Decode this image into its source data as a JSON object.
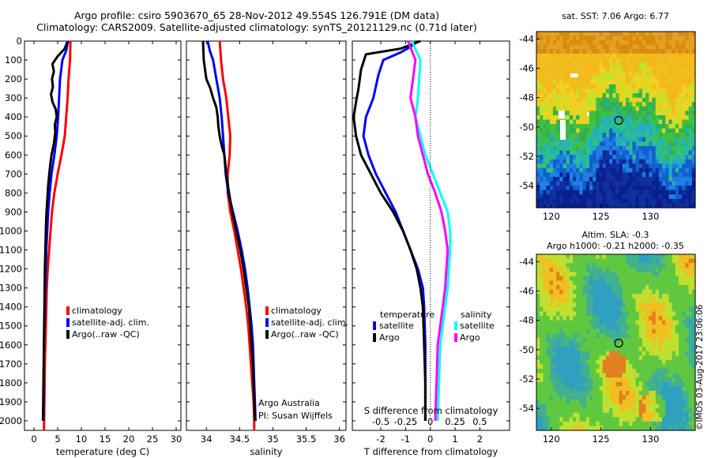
{
  "header": {
    "line1": "Argo profile: csiro 5903670_65 28-Nov-2012 49.554S 126.791E (DM data)",
    "line2": "Climatology: CARS2009. Satellite-adjusted climatology: synTS_20121129.nc (0.71d later)"
  },
  "colors": {
    "climatology": "#ff0000",
    "satellite": "#0000ff",
    "argo": "#000000",
    "satellite_s": "#00ffff",
    "argo_s": "#ff00ff"
  },
  "chart_data": [
    {
      "type": "line",
      "id": "temperature",
      "xlabel": "temperature (deg C)",
      "xlim": [
        -2,
        31
      ],
      "xticks": [
        0,
        5,
        10,
        15,
        20,
        25,
        30
      ],
      "ylim": [
        2050,
        0
      ],
      "yticks": [
        0,
        100,
        200,
        300,
        400,
        500,
        600,
        700,
        800,
        900,
        1000,
        1100,
        1200,
        1300,
        1400,
        1500,
        1600,
        1700,
        1800,
        1900,
        2000
      ],
      "legend": [
        "climatology",
        "satellite-adj. clim.",
        "Argo(..raw -QC)"
      ],
      "series": [
        {
          "name": "climatology",
          "color_key": "climatology",
          "points": [
            [
              7.7,
              0
            ],
            [
              7.6,
              100
            ],
            [
              7.3,
              200
            ],
            [
              7.1,
              300
            ],
            [
              6.8,
              400
            ],
            [
              6.5,
              500
            ],
            [
              5.8,
              600
            ],
            [
              5.0,
              700
            ],
            [
              4.3,
              800
            ],
            [
              3.8,
              900
            ],
            [
              3.5,
              1000
            ],
            [
              3.2,
              1100
            ],
            [
              2.9,
              1200
            ],
            [
              2.7,
              1300
            ],
            [
              2.6,
              1400
            ],
            [
              2.5,
              1500
            ],
            [
              2.4,
              1600
            ],
            [
              2.3,
              1700
            ],
            [
              2.25,
              1800
            ],
            [
              2.2,
              1900
            ],
            [
              2.15,
              2000
            ],
            [
              2.1,
              2050
            ]
          ]
        },
        {
          "name": "satellite-adj. clim.",
          "color_key": "satellite",
          "points": [
            [
              7.2,
              0
            ],
            [
              6.8,
              50
            ],
            [
              6.0,
              100
            ],
            [
              5.5,
              200
            ],
            [
              5.3,
              300
            ],
            [
              5.1,
              400
            ],
            [
              4.8,
              500
            ],
            [
              4.3,
              600
            ],
            [
              3.7,
              700
            ],
            [
              3.3,
              800
            ],
            [
              3.0,
              900
            ],
            [
              2.8,
              1000
            ],
            [
              2.6,
              1100
            ],
            [
              2.5,
              1200
            ],
            [
              2.4,
              1300
            ],
            [
              2.3,
              1400
            ],
            [
              2.2,
              1500
            ],
            [
              2.1,
              1600
            ],
            [
              2.05,
              1800
            ],
            [
              2.0,
              2000
            ]
          ]
        },
        {
          "name": "Argo(..raw -QC)",
          "color_key": "argo",
          "points": [
            [
              7.0,
              5
            ],
            [
              6.5,
              40
            ],
            [
              5.0,
              80
            ],
            [
              3.9,
              120
            ],
            [
              4.2,
              160
            ],
            [
              3.8,
              200
            ],
            [
              4.0,
              240
            ],
            [
              3.6,
              280
            ],
            [
              3.9,
              320
            ],
            [
              4.6,
              360
            ],
            [
              4.8,
              400
            ],
            [
              4.4,
              440
            ],
            [
              4.5,
              480
            ],
            [
              4.2,
              540
            ],
            [
              3.7,
              600
            ],
            [
              3.3,
              680
            ],
            [
              3.0,
              760
            ],
            [
              2.8,
              840
            ],
            [
              2.6,
              920
            ],
            [
              2.5,
              1000
            ],
            [
              2.4,
              1100
            ],
            [
              2.3,
              1200
            ],
            [
              2.25,
              1300
            ],
            [
              2.2,
              1400
            ],
            [
              2.15,
              1500
            ],
            [
              2.1,
              1600
            ],
            [
              2.05,
              1700
            ],
            [
              2.0,
              1800
            ],
            [
              1.95,
              1900
            ],
            [
              1.9,
              2000
            ]
          ]
        }
      ]
    },
    {
      "type": "line",
      "id": "salinity",
      "xlabel": "salinity",
      "xlim": [
        33.7,
        36.1
      ],
      "xticks": [
        34,
        34.5,
        35,
        35.5,
        36
      ],
      "ylim": [
        2050,
        0
      ],
      "legend": [
        "climatology",
        "satellite-adj. clim.",
        "Argo(..raw -QC)"
      ],
      "annotation": [
        "Argo Australia",
        "PI: Susan Wijffels"
      ],
      "series": [
        {
          "name": "climatology",
          "color_key": "climatology",
          "points": [
            [
              34.2,
              0
            ],
            [
              34.22,
              100
            ],
            [
              34.25,
              200
            ],
            [
              34.3,
              300
            ],
            [
              34.33,
              400
            ],
            [
              34.36,
              500
            ],
            [
              34.35,
              600
            ],
            [
              34.32,
              700
            ],
            [
              34.32,
              800
            ],
            [
              34.36,
              900
            ],
            [
              34.42,
              1000
            ],
            [
              34.47,
              1100
            ],
            [
              34.52,
              1200
            ],
            [
              34.56,
              1300
            ],
            [
              34.6,
              1400
            ],
            [
              34.63,
              1500
            ],
            [
              34.65,
              1600
            ],
            [
              34.67,
              1700
            ],
            [
              34.69,
              1800
            ],
            [
              34.71,
              1900
            ],
            [
              34.72,
              2000
            ],
            [
              34.72,
              2050
            ]
          ]
        },
        {
          "name": "satellite-adj. clim.",
          "color_key": "satellite",
          "points": [
            [
              34.02,
              0
            ],
            [
              34.05,
              50
            ],
            [
              34.1,
              100
            ],
            [
              34.15,
              200
            ],
            [
              34.2,
              300
            ],
            [
              34.23,
              400
            ],
            [
              34.25,
              500
            ],
            [
              34.27,
              600
            ],
            [
              34.29,
              700
            ],
            [
              34.33,
              800
            ],
            [
              34.4,
              900
            ],
            [
              34.47,
              1000
            ],
            [
              34.53,
              1100
            ],
            [
              34.58,
              1200
            ],
            [
              34.62,
              1300
            ],
            [
              34.65,
              1400
            ],
            [
              34.68,
              1500
            ],
            [
              34.7,
              1600
            ],
            [
              34.72,
              1800
            ],
            [
              34.74,
              2000
            ]
          ]
        },
        {
          "name": "Argo(..raw -QC)",
          "color_key": "argo",
          "points": [
            [
              33.95,
              0
            ],
            [
              33.96,
              100
            ],
            [
              34.0,
              200
            ],
            [
              34.06,
              250
            ],
            [
              34.1,
              300
            ],
            [
              34.15,
              350
            ],
            [
              34.17,
              400
            ],
            [
              34.18,
              450
            ],
            [
              34.2,
              500
            ],
            [
              34.23,
              550
            ],
            [
              34.27,
              600
            ],
            [
              34.3,
              700
            ],
            [
              34.34,
              800
            ],
            [
              34.39,
              900
            ],
            [
              34.45,
              1000
            ],
            [
              34.51,
              1100
            ],
            [
              34.56,
              1200
            ],
            [
              34.6,
              1300
            ],
            [
              34.64,
              1400
            ],
            [
              34.66,
              1500
            ],
            [
              34.68,
              1600
            ],
            [
              34.7,
              1700
            ],
            [
              34.71,
              1800
            ],
            [
              34.72,
              1900
            ],
            [
              34.73,
              2000
            ]
          ]
        }
      ]
    },
    {
      "type": "line",
      "id": "difference",
      "xlabel": "T difference from climatology",
      "xlabel_top": "S difference from climatology",
      "xlim": [
        -3.15,
        3.2
      ],
      "xticks": [
        -2,
        -1,
        0,
        1,
        2
      ],
      "xticks_s": [
        "-0.5",
        "-0.25",
        "0",
        "0.25",
        "0.5"
      ],
      "ylim": [
        2050,
        0
      ],
      "legend_t_title": "temperature",
      "legend_s_title": "salinity",
      "legend_t": [
        "satellite",
        "Argo"
      ],
      "legend_s": [
        "satellite",
        "Argo"
      ],
      "series": [
        {
          "name": "satellite",
          "color_key": "satellite",
          "points": [
            [
              -0.5,
              0
            ],
            [
              -0.8,
              30
            ],
            [
              -1.2,
              60
            ],
            [
              -1.9,
              100
            ],
            [
              -2.1,
              180
            ],
            [
              -2.3,
              300
            ],
            [
              -2.6,
              400
            ],
            [
              -2.7,
              500
            ],
            [
              -2.5,
              600
            ],
            [
              -2.2,
              700
            ],
            [
              -1.8,
              800
            ],
            [
              -1.4,
              900
            ],
            [
              -1.1,
              1000
            ],
            [
              -0.8,
              1100
            ],
            [
              -0.5,
              1200
            ],
            [
              -0.3,
              1300
            ],
            [
              -0.25,
              1400
            ],
            [
              -0.2,
              1600
            ],
            [
              -0.2,
              1800
            ],
            [
              -0.2,
              2000
            ]
          ]
        },
        {
          "name": "Argo",
          "color_key": "argo",
          "points": [
            [
              -0.4,
              0
            ],
            [
              -1.2,
              40
            ],
            [
              -2.6,
              70
            ],
            [
              -2.8,
              150
            ],
            [
              -2.9,
              250
            ],
            [
              -3.0,
              320
            ],
            [
              -3.1,
              400
            ],
            [
              -3.0,
              500
            ],
            [
              -2.8,
              600
            ],
            [
              -2.4,
              700
            ],
            [
              -2.0,
              800
            ],
            [
              -1.5,
              900
            ],
            [
              -1.1,
              1000
            ],
            [
              -0.8,
              1100
            ],
            [
              -0.55,
              1200
            ],
            [
              -0.4,
              1300
            ],
            [
              -0.3,
              1400
            ],
            [
              -0.25,
              1600
            ],
            [
              -0.2,
              1800
            ],
            [
              -0.2,
              2000
            ]
          ]
        },
        {
          "name": "satellite",
          "color_key": "satellite_s",
          "points": [
            [
              -0.75,
              0
            ],
            [
              -0.4,
              100
            ],
            [
              -0.5,
              300
            ],
            [
              -0.6,
              400
            ],
            [
              -0.4,
              500
            ],
            [
              -0.2,
              600
            ],
            [
              0.1,
              700
            ],
            [
              0.4,
              800
            ],
            [
              0.7,
              900
            ],
            [
              0.8,
              1000
            ],
            [
              0.8,
              1100
            ],
            [
              0.75,
              1200
            ],
            [
              0.7,
              1300
            ],
            [
              0.6,
              1400
            ],
            [
              0.5,
              1500
            ],
            [
              0.4,
              1600
            ],
            [
              0.35,
              1800
            ],
            [
              0.3,
              2000
            ]
          ]
        },
        {
          "name": "Argo",
          "color_key": "argo_s",
          "points": [
            [
              -0.9,
              0
            ],
            [
              -0.6,
              100
            ],
            [
              -0.8,
              300
            ],
            [
              -0.6,
              400
            ],
            [
              -0.5,
              500
            ],
            [
              -0.3,
              600
            ],
            [
              -0.1,
              700
            ],
            [
              0.2,
              800
            ],
            [
              0.45,
              900
            ],
            [
              0.6,
              1000
            ],
            [
              0.7,
              1100
            ],
            [
              0.65,
              1200
            ],
            [
              0.6,
              1300
            ],
            [
              0.5,
              1400
            ],
            [
              0.4,
              1500
            ],
            [
              0.3,
              1600
            ],
            [
              0.25,
              1800
            ],
            [
              0.2,
              2000
            ]
          ]
        }
      ]
    },
    {
      "type": "heatmap",
      "id": "sst_map",
      "title": "sat. SST: 7.06 Argo: 6.77",
      "xticks": [
        120,
        125,
        130
      ],
      "yticks": [
        -44,
        -46,
        -48,
        -50,
        -52,
        -54
      ],
      "xlim": [
        118.5,
        134.5
      ],
      "ylim": [
        -55.5,
        -43.5
      ],
      "argo_marker": [
        126.791,
        -49.554
      ]
    },
    {
      "type": "heatmap",
      "id": "sla_map",
      "title_lines": [
        "Altim. SLA: -0.3",
        "Argo h1000: -0.21 h2000: -0.35"
      ],
      "xticks": [
        120,
        125,
        130
      ],
      "yticks": [
        -44,
        -46,
        -48,
        -50,
        -52,
        -54
      ],
      "xlim": [
        118.5,
        134.5
      ],
      "ylim": [
        -55.5,
        -43.5
      ],
      "argo_marker": [
        126.791,
        -49.554
      ]
    }
  ],
  "side_stamp": "©IMOS 03-Aug-2017 23:06:06"
}
